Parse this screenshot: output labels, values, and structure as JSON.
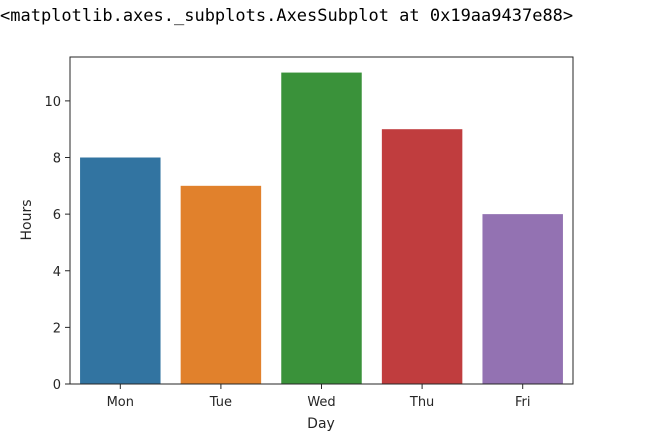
{
  "output": {
    "repr_text": "<matplotlib.axes._subplots.AxesSubplot at 0x19aa9437e88>"
  },
  "chart_data": {
    "type": "bar",
    "categories": [
      "Mon",
      "Tue",
      "Wed",
      "Thu",
      "Fri"
    ],
    "values": [
      8,
      7,
      11,
      9,
      6
    ],
    "colors": [
      "#3274a1",
      "#e1812c",
      "#3a923a",
      "#c03d3e",
      "#9372b2"
    ],
    "title": "",
    "xlabel": "Day",
    "ylabel": "Hours",
    "ylim": [
      0,
      11.55
    ],
    "yticks": [
      0,
      2,
      4,
      6,
      8,
      10
    ],
    "grid": false,
    "legend": "none"
  }
}
